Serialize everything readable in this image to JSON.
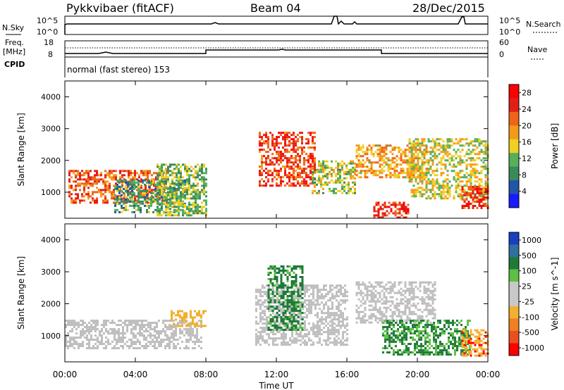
{
  "header": {
    "station": "Pykkvibaer (fitACF)",
    "beam": "Beam 04",
    "date": "28/Dec/2015"
  },
  "noise_panel": {
    "left_label": "N.Sky",
    "right_label": "N.Search",
    "ticks_left": [
      "10^5",
      "10^0"
    ],
    "ticks_right": [
      "10^5",
      "10^0"
    ]
  },
  "freq_panel": {
    "label_line1": "Freq.",
    "label_line2": "[MHz]",
    "cpid_label": "CPID",
    "right_label": "Nave",
    "ticks_left": [
      "18",
      "8"
    ],
    "ticks_right": [
      "60",
      "0"
    ]
  },
  "cpid_text": "normal (fast stereo) 153",
  "colors": {
    "power_scale": [
      "#1a1aff",
      "#2255aa",
      "#3a8a5a",
      "#55b05a",
      "#f0d020",
      "#f59a18",
      "#ef6418",
      "#e02018",
      "#ff0000"
    ],
    "velocity_scale": [
      "#1a40c0",
      "#3070a0",
      "#1f7a3a",
      "#5cc040",
      "#c8c8c8",
      "#c8c8c8",
      "#f0b030",
      "#f08020",
      "#e85020",
      "#ff0000"
    ],
    "ground_scatter": "#bebebe"
  },
  "chart_data": [
    {
      "type": "heatmap",
      "title": "",
      "xlabel": "Time UT",
      "ylabel": "Slant Range [km]",
      "xlim": [
        "00:00",
        "24:00"
      ],
      "ylim": [
        180,
        4500
      ],
      "x_ticks": [
        "00:00",
        "04:00",
        "08:00",
        "12:00",
        "16:00",
        "20:00",
        "00:00"
      ],
      "y_ticks": [
        "1000",
        "2000",
        "3000",
        "4000"
      ],
      "colorbar": {
        "label": "Power [dB]",
        "ticks": [
          "4",
          "8",
          "12",
          "16",
          "20",
          "24",
          "28"
        ],
        "range": [
          0,
          30
        ]
      },
      "regions": [
        {
          "t_start": 0.2,
          "t_end": 5.8,
          "r_start": 700,
          "r_end": 1700,
          "value": 22
        },
        {
          "t_start": 2.8,
          "t_end": 6.8,
          "r_start": 400,
          "r_end": 1400,
          "value": 10
        },
        {
          "t_start": 5.2,
          "t_end": 8.0,
          "r_start": 300,
          "r_end": 1900,
          "value": 12
        },
        {
          "t_start": 11.0,
          "t_end": 14.2,
          "r_start": 1200,
          "r_end": 2900,
          "value": 24
        },
        {
          "t_start": 14.0,
          "t_end": 16.5,
          "r_start": 1000,
          "r_end": 2000,
          "value": 14
        },
        {
          "t_start": 16.5,
          "t_end": 20.5,
          "r_start": 1500,
          "r_end": 2500,
          "value": 18
        },
        {
          "t_start": 17.5,
          "t_end": 19.5,
          "r_start": 200,
          "r_end": 700,
          "value": 26
        },
        {
          "t_start": 19.5,
          "t_end": 24.0,
          "r_start": 800,
          "r_end": 2700,
          "value": 15
        },
        {
          "t_start": 22.5,
          "t_end": 24.0,
          "r_start": 500,
          "r_end": 1200,
          "value": 24
        }
      ]
    },
    {
      "type": "heatmap",
      "title": "",
      "xlabel": "Time UT",
      "ylabel": "Slant Range [km]",
      "xlim": [
        "00:00",
        "24:00"
      ],
      "ylim": [
        180,
        4500
      ],
      "x_ticks": [
        "00:00",
        "04:00",
        "08:00",
        "12:00",
        "16:00",
        "20:00",
        "00:00"
      ],
      "y_ticks": [
        "1000",
        "2000",
        "3000",
        "4000"
      ],
      "colorbar": {
        "label": "Velocity [m s^-1]",
        "ticks": [
          "1000",
          "500",
          "100",
          "25",
          "-25",
          "-100",
          "-500",
          "-1000"
        ],
        "range": [
          -1000,
          1000
        ]
      },
      "regions": [
        {
          "t_start": 0.0,
          "t_end": 7.8,
          "r_start": 600,
          "r_end": 1500,
          "value": "ground"
        },
        {
          "t_start": 6.0,
          "t_end": 8.0,
          "r_start": 1300,
          "r_end": 1800,
          "value": -300
        },
        {
          "t_start": 10.8,
          "t_end": 16.0,
          "r_start": 700,
          "r_end": 2600,
          "value": "ground"
        },
        {
          "t_start": 11.5,
          "t_end": 13.5,
          "r_start": 1200,
          "r_end": 3200,
          "value": 150
        },
        {
          "t_start": 16.5,
          "t_end": 21.0,
          "r_start": 1400,
          "r_end": 2700,
          "value": "ground"
        },
        {
          "t_start": 18.0,
          "t_end": 23.0,
          "r_start": 400,
          "r_end": 1500,
          "value": 120
        },
        {
          "t_start": 22.5,
          "t_end": 24.0,
          "r_start": 400,
          "r_end": 1200,
          "value": -400
        }
      ]
    }
  ]
}
